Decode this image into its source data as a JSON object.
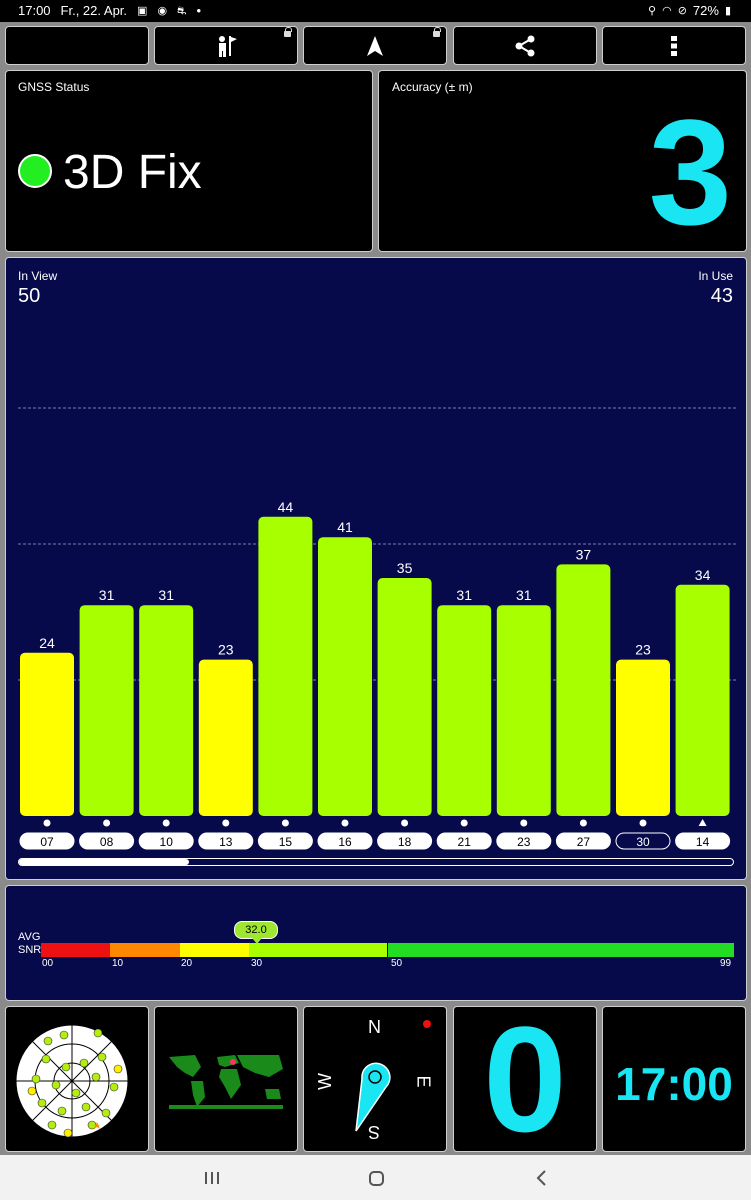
{
  "status_bar": {
    "time": "17:00",
    "date": "Fr., 22. Apr.",
    "battery": "72%",
    "dot": "•"
  },
  "toolbar": {
    "buttons": [
      {
        "icon": "moon-icon"
      },
      {
        "icon": "person-flag-icon",
        "locked": true
      },
      {
        "icon": "navigation-arrow-icon",
        "locked": true
      },
      {
        "icon": "share-icon"
      },
      {
        "icon": "more-vert-icon"
      }
    ]
  },
  "gnss": {
    "label": "GNSS Status",
    "fix": "3D Fix",
    "fix_color": "#22ee22"
  },
  "accuracy": {
    "label": "Accuracy (± m)",
    "value": "3"
  },
  "satellites": {
    "in_view_label": "In View",
    "in_view": "50",
    "in_use_label": "In Use",
    "in_use": "43"
  },
  "chart_data": {
    "type": "bar",
    "categories": [
      "07",
      "08",
      "10",
      "13",
      "15",
      "16",
      "18",
      "21",
      "23",
      "27",
      "30",
      "14"
    ],
    "values": [
      24,
      31,
      31,
      23,
      44,
      41,
      35,
      31,
      31,
      37,
      23,
      34
    ],
    "bar_colors": [
      "#ffff00",
      "#a8ff00",
      "#a8ff00",
      "#ffff00",
      "#a8ff00",
      "#a8ff00",
      "#a8ff00",
      "#a8ff00",
      "#a8ff00",
      "#a8ff00",
      "#ffff00",
      "#a8ff00"
    ],
    "markers": [
      "circle",
      "circle",
      "circle",
      "circle",
      "circle",
      "circle",
      "circle",
      "circle",
      "circle",
      "circle",
      "circle",
      "triangle"
    ],
    "outlined": [
      false,
      false,
      false,
      false,
      false,
      false,
      false,
      false,
      false,
      false,
      true,
      false
    ],
    "ylim": [
      0,
      60
    ],
    "gridlines": [
      20,
      40,
      60
    ],
    "grid": true
  },
  "snr": {
    "label_avg": "AVG",
    "label_snr": "SNR",
    "avg": "32.0",
    "avg_value": 32,
    "ticks": [
      "00",
      "10",
      "20",
      "30",
      "50",
      "99"
    ],
    "segments": [
      {
        "from": 0,
        "to": 10,
        "color": "#ee1111"
      },
      {
        "from": 10,
        "to": 20,
        "color": "#ff8800"
      },
      {
        "from": 20,
        "to": 30,
        "color": "#ffff00"
      },
      {
        "from": 30,
        "to": 50,
        "color": "#a8ff00"
      },
      {
        "from": 50,
        "to": 99,
        "color": "#22dd22"
      }
    ]
  },
  "compass": {
    "n": "N",
    "e": "E",
    "s": "S",
    "w": "W"
  },
  "speed": {
    "value": "0"
  },
  "clock": {
    "time": "17:00"
  },
  "colors": {
    "accent": "#19e6f2",
    "chart_bg": "#060a4a"
  }
}
